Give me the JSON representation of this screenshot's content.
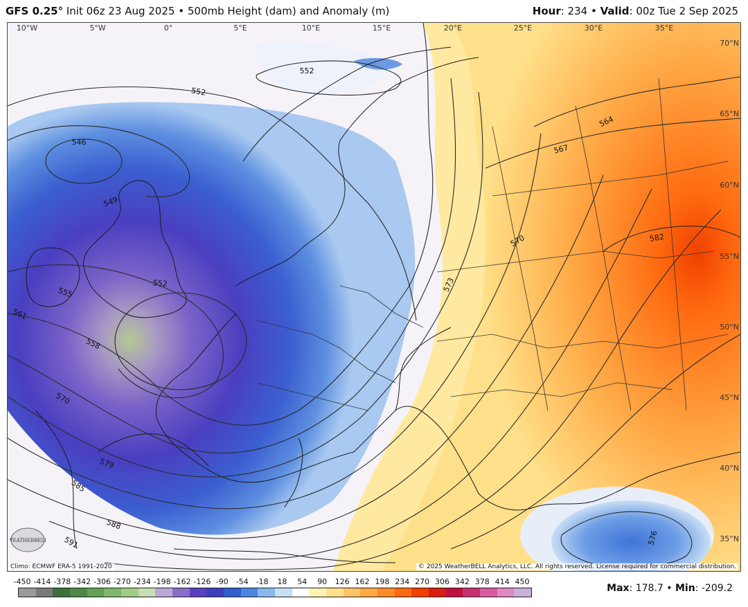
{
  "header": {
    "model": "GFS 0.25°",
    "init": "Init 06z 23 Aug 2025",
    "bullet": "•",
    "field": "500mb Height (dam) and Anomaly (m)",
    "hour_label": "Hour",
    "hour_value": ": 234",
    "valid_label": "Valid",
    "valid_value": ": 00z Tue 2 Sep 2025"
  },
  "map": {
    "longitude_labels": [
      "10°W",
      "5°W",
      "0°",
      "5°E",
      "10°E",
      "15°E",
      "20°E",
      "25°E",
      "30°E",
      "35°E"
    ],
    "latitude_labels": [
      "70°N",
      "65°N",
      "60°N",
      "55°N",
      "50°N",
      "45°N",
      "40°N",
      "35°N"
    ],
    "contour_labels": [
      "552",
      "552",
      "546",
      "549",
      "552",
      "555",
      "561",
      "558",
      "570",
      "579",
      "585",
      "588",
      "591",
      "564",
      "567",
      "570",
      "573",
      "582",
      "576"
    ],
    "logo_text": "WEATHERBELL"
  },
  "footer": {
    "climo_note": "Climo: ECMWF ERA-5 1991-2020",
    "copyright": "© 2025 WeatherBELL Analytics, LLC. All rights reserved. License required for commercial distribution.",
    "max_label": "Max",
    "max_value": ": 178.7",
    "separator": "•",
    "min_label": "Min",
    "min_value": ": -209.2"
  },
  "colorbar": {
    "tick_labels": [
      "-450",
      "-414",
      "-378",
      "-342",
      "-306",
      "-270",
      "-234",
      "-198",
      "-162",
      "-126",
      "-90",
      "-54",
      "-18",
      "18",
      "54",
      "90",
      "126",
      "162",
      "198",
      "234",
      "270",
      "306",
      "342",
      "378",
      "414",
      "450"
    ],
    "colors": [
      "#9a9a9a",
      "#7a7a7a",
      "#3f6f3a",
      "#4c8a45",
      "#62a055",
      "#7fb86a",
      "#a2cc86",
      "#c8ddb2",
      "#bba7d8",
      "#8a6dcb",
      "#5a3fbf",
      "#3b3fbf",
      "#2f5fd0",
      "#4a86e0",
      "#8ab8ee",
      "#c8def5",
      "#ffffff",
      "#fff3b0",
      "#ffe08a",
      "#ffc466",
      "#ffa845",
      "#ff8a2a",
      "#ff6a10",
      "#f04000",
      "#d81e10",
      "#c01040",
      "#c83070",
      "#d85aa0",
      "#e088c0",
      "#c8b0d8"
    ]
  }
}
